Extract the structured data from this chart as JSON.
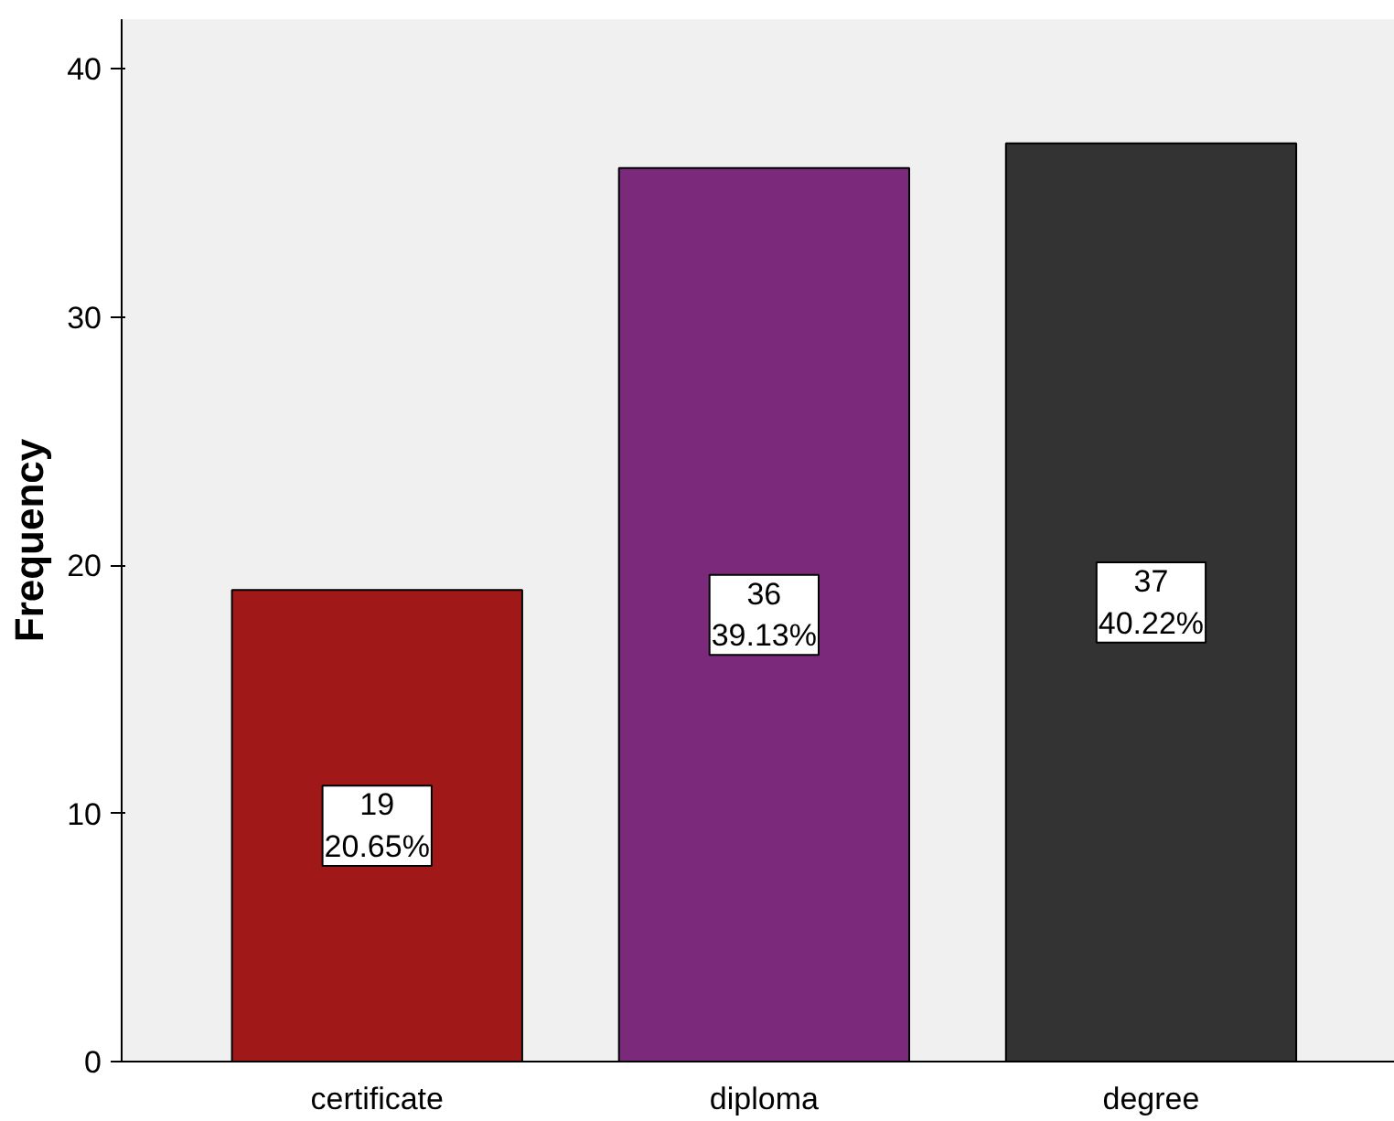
{
  "chart_data": {
    "type": "bar",
    "ylabel": "Frequency",
    "categories": [
      "certificate",
      "diploma",
      "degree"
    ],
    "values": [
      19,
      36,
      37
    ],
    "colors": [
      "#a01818",
      "#7b2a7b",
      "#333333"
    ],
    "value_labels": [
      "19\n20.65%",
      "36\n39.13%",
      "37\n40.22%"
    ],
    "ylim": [
      0,
      42
    ],
    "yticks": [
      0,
      10,
      20,
      30,
      40
    ],
    "grid": false
  }
}
